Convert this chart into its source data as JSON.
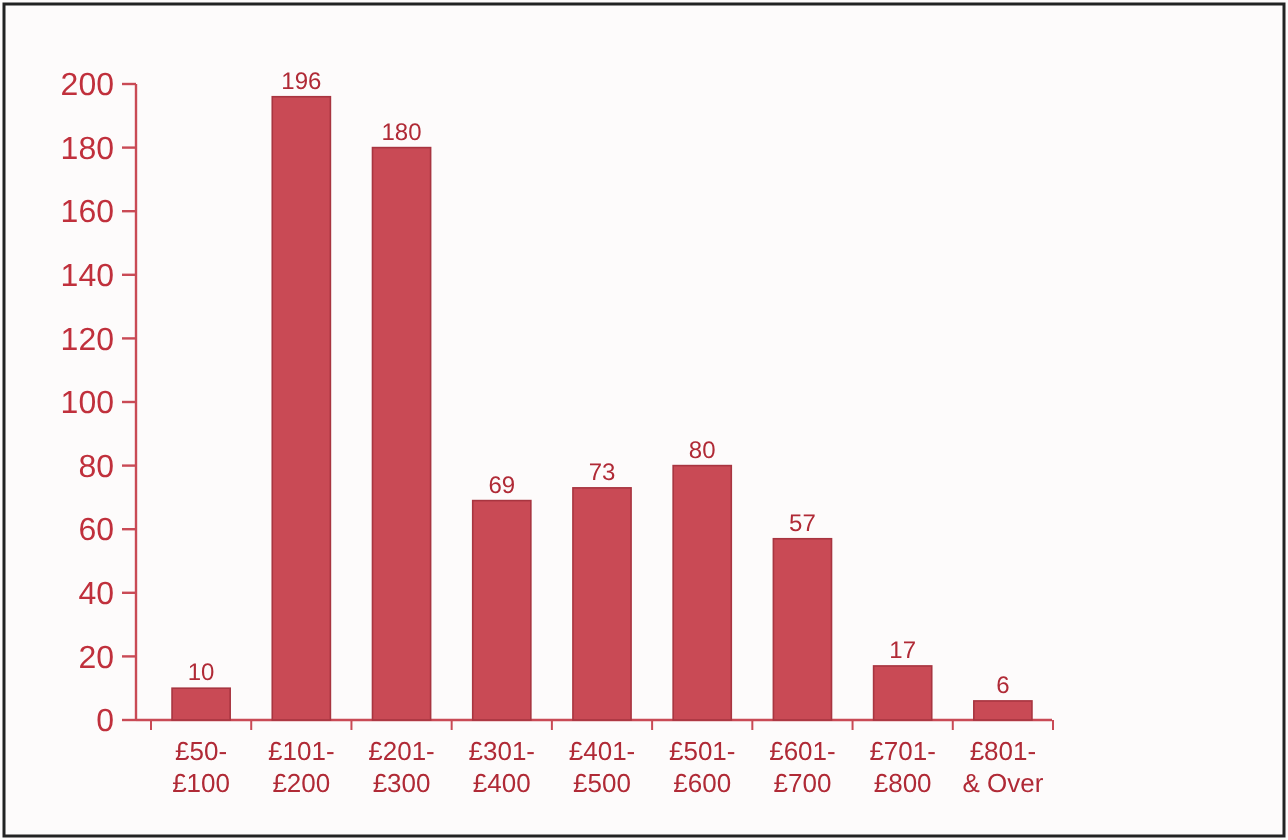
{
  "chart_data": {
    "type": "bar",
    "categories": [
      "£50-\n£100",
      "£101-\n£200",
      "£201-\n£300",
      "£301-\n£400",
      "£401-\n£500",
      "£501-\n£600",
      "£601-\n£700",
      "£701-\n£800",
      "£801-\n& Over"
    ],
    "values": [
      10,
      196,
      180,
      69,
      73,
      80,
      57,
      17,
      6
    ],
    "color": "#c94a55",
    "ylim": [
      0,
      200
    ],
    "yticks": [
      0,
      20,
      40,
      60,
      80,
      100,
      120,
      140,
      160,
      180,
      200
    ],
    "data_labels": true,
    "grid": false
  }
}
